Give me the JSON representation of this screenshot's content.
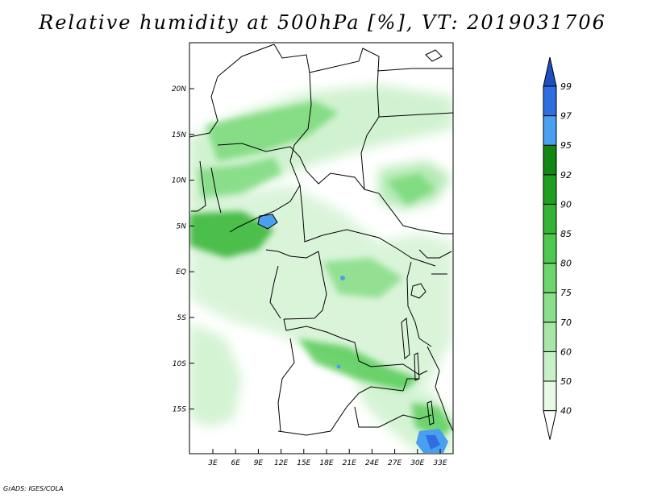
{
  "title": "Relative humidity at 500hPa [%], VT: 2019031706",
  "credit": "GrADS: IGES/COLA",
  "axes": {
    "lat_labels": [
      "20N",
      "15N",
      "10N",
      "5N",
      "EQ",
      "5S",
      "10S",
      "15S"
    ],
    "lon_labels": [
      "3E",
      "6E",
      "9E",
      "12E",
      "15E",
      "18E",
      "21E",
      "24E",
      "27E",
      "30E",
      "33E"
    ]
  },
  "colorbar": {
    "levels": [
      "40",
      "50",
      "60",
      "70",
      "75",
      "80",
      "85",
      "90",
      "92",
      "95",
      "97",
      "99"
    ],
    "colors": [
      "#ffffff",
      "#e6fae6",
      "#c8f0c8",
      "#a8e6a8",
      "#8ae08a",
      "#6cd66c",
      "#4ec84e",
      "#34b434",
      "#1ea01e",
      "#118811",
      "#4aa0f0",
      "#2e6ee0",
      "#1e4fc0"
    ]
  }
}
